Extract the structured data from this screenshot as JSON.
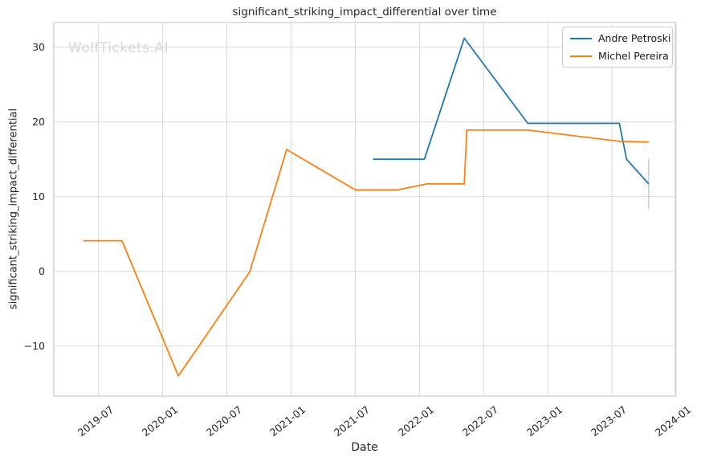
{
  "watermark": {
    "text": "WolfTickets.AI"
  },
  "colors": {
    "grid": "#d9d9d9",
    "spine": "#cccccc",
    "text": "#262626",
    "watermark": "#d6d6d6",
    "series_blue": "#1f77b4",
    "series_orange": "#ff7f0e"
  },
  "chart_data": {
    "type": "line",
    "title": "significant_striking_impact_differential over time",
    "xlabel": "Date",
    "ylabel": "significant_striking_impact_differential",
    "grid": true,
    "legend_position": "upper right",
    "xlim": [
      "2019-02-26",
      "2023-12-29"
    ],
    "ylim": [
      -16.7,
      33.3
    ],
    "x_ticks": [
      {
        "date": "2019-07-01",
        "label": "2019-07"
      },
      {
        "date": "2020-01-01",
        "label": "2020-01"
      },
      {
        "date": "2020-07-01",
        "label": "2020-07"
      },
      {
        "date": "2021-01-01",
        "label": "2021-01"
      },
      {
        "date": "2021-07-01",
        "label": "2021-07"
      },
      {
        "date": "2022-01-01",
        "label": "2022-01"
      },
      {
        "date": "2022-07-01",
        "label": "2022-07"
      },
      {
        "date": "2023-01-01",
        "label": "2023-01"
      },
      {
        "date": "2023-07-01",
        "label": "2023-07"
      },
      {
        "date": "2024-01-01",
        "label": "2024-01"
      }
    ],
    "y_ticks": [
      {
        "value": 30,
        "label": "30"
      },
      {
        "value": 20,
        "label": "20"
      },
      {
        "value": 10,
        "label": "10"
      },
      {
        "value": 0,
        "label": "0"
      },
      {
        "value": -10,
        "label": "−10"
      }
    ],
    "series": [
      {
        "name": "Andre Petroski",
        "color": "#1f77b4",
        "points": [
          [
            "2021-08-21",
            15.0
          ],
          [
            "2022-01-15",
            15.0
          ],
          [
            "2022-05-07",
            31.2
          ],
          [
            "2022-11-05",
            19.8
          ],
          [
            "2023-07-22",
            19.8
          ],
          [
            "2023-08-12",
            15.0
          ],
          [
            "2023-10-14",
            11.7
          ]
        ]
      },
      {
        "name": "Michel Pereira",
        "color": "#ff7f0e",
        "points": [
          [
            "2019-05-18",
            4.1
          ],
          [
            "2019-09-07",
            4.1
          ],
          [
            "2020-02-15",
            -14.0
          ],
          [
            "2020-09-05",
            -0.1
          ],
          [
            "2020-12-19",
            16.3
          ],
          [
            "2021-07-01",
            10.9
          ],
          [
            "2021-10-30",
            10.9
          ],
          [
            "2022-01-22",
            11.7
          ],
          [
            "2022-05-07",
            11.7
          ],
          [
            "2022-05-14",
            18.9
          ],
          [
            "2022-11-05",
            18.9
          ],
          [
            "2023-07-22",
            17.4
          ],
          [
            "2023-10-14",
            17.3
          ]
        ]
      }
    ],
    "error_bar": {
      "series": "Andre Petroski",
      "x": "2023-10-14",
      "y_top": 15.1,
      "y_bottom": 8.3,
      "color": "#1f77b4",
      "opacity": 0.3
    }
  }
}
